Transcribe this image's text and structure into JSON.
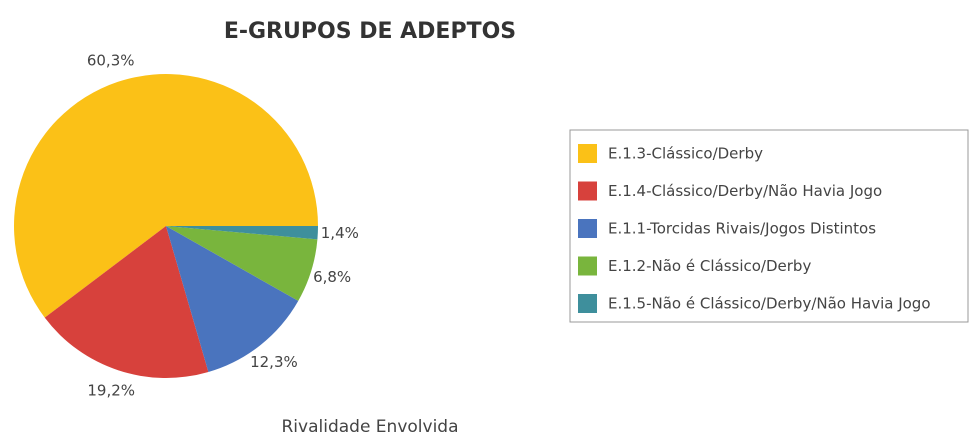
{
  "chart_data": {
    "type": "pie",
    "title": "E-GRUPOS DE ADEPTOS",
    "subtitle": "Rivalidade Envolvida",
    "categories": [
      "E.1.3-Clássico/Derby",
      "E.1.4-Clássico/Derby/Não Havia Jogo",
      "E.1.1-Torcidas Rivais/Jogos Distintos",
      "E.1.2-Não é Clássico/Derby",
      "E.1.5-Não é Clássico/Derby/Não Havia Jogo"
    ],
    "values": [
      60.3,
      19.2,
      12.3,
      6.8,
      1.4
    ],
    "value_labels": [
      "60,3%",
      "19,2%",
      "12,3%",
      "6,8%",
      "1,4%"
    ],
    "colors": [
      "#FBC117",
      "#D7413C",
      "#4A74BE",
      "#79B53D",
      "#3E8F9C"
    ],
    "legend": "right"
  }
}
